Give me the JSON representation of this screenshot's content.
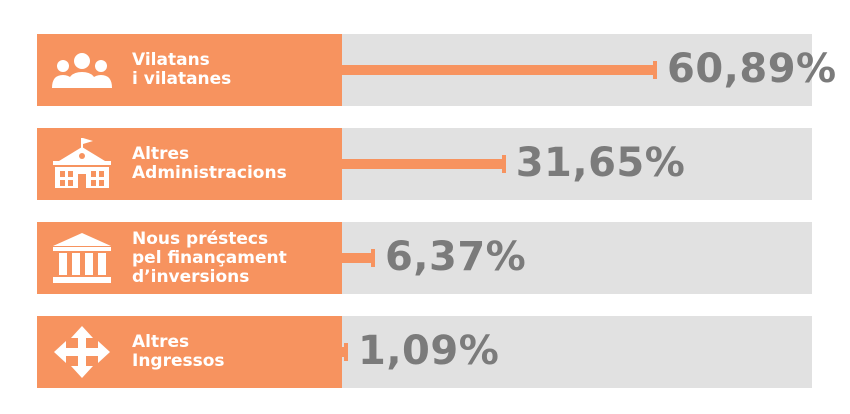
{
  "chart_data": {
    "type": "bar",
    "orientation": "horizontal",
    "categories": [
      [
        "Vilatans",
        "i vilatanes"
      ],
      [
        "Altres",
        "Administracions"
      ],
      [
        "Nous préstecs",
        "pel finançament",
        "d’inversions"
      ],
      [
        "Altres",
        "Ingressos"
      ]
    ],
    "values": [
      60.89,
      31.65,
      6.37,
      1.09
    ],
    "value_labels": [
      "60,89%",
      "31,65%",
      "6,37%",
      "1,09%"
    ],
    "icons": [
      "people-icon",
      "town-hall-icon",
      "bank-icon",
      "four-arrows-icon"
    ],
    "xlim": [
      0,
      100
    ],
    "colors": {
      "accent": "#f7935f",
      "track": "#e1e1e1",
      "label_text": "#ffffff",
      "value_text": "#7b7b7b"
    }
  }
}
